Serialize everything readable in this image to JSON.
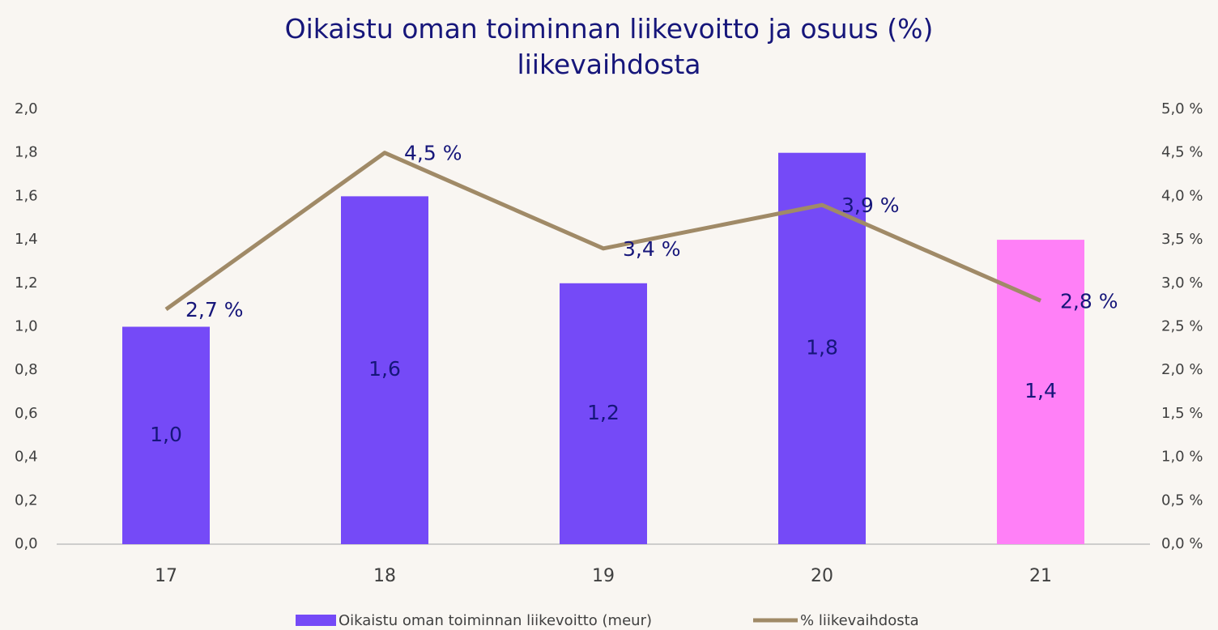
{
  "chart_data": {
    "type": "bar_line",
    "title": "Oikaistu oman toiminnan liikevoitto ja osuus (%) liikevaihdosta",
    "categories": [
      "17",
      "18",
      "19",
      "20",
      "21"
    ],
    "series": [
      {
        "name": "Oikaistu oman toiminnan liikevoitto (meur)",
        "type": "bar",
        "color": "#754af7",
        "colors": [
          "#754af7",
          "#754af7",
          "#754af7",
          "#754af7",
          "#ff80f7"
        ],
        "values": [
          1.0,
          1.6,
          1.2,
          1.8,
          1.4
        ],
        "value_labels": [
          "1,0",
          "1,6",
          "1,2",
          "1,8",
          "1,4"
        ]
      },
      {
        "name": "% liikevaihdosta",
        "type": "line",
        "axis": "y2",
        "color": "#a08a67",
        "values": [
          2.7,
          4.5,
          3.4,
          3.9,
          2.8
        ],
        "value_labels": [
          "2,7 %",
          "4,5 %",
          "3,4 %",
          "3,9 %",
          "2,8 %"
        ]
      }
    ],
    "ylim": [
      0,
      2.0
    ],
    "yticks": [
      {
        "value": 0,
        "label": "0,0"
      },
      {
        "value": 0.2,
        "label": "0,2"
      },
      {
        "value": 0.4,
        "label": "0,4"
      },
      {
        "value": 0.6,
        "label": "0,6"
      },
      {
        "value": 0.8,
        "label": "0,8"
      },
      {
        "value": 1.0,
        "label": "1,0"
      },
      {
        "value": 1.2,
        "label": "1,2"
      },
      {
        "value": 1.4,
        "label": "1,4"
      },
      {
        "value": 1.6,
        "label": "1,6"
      },
      {
        "value": 1.8,
        "label": "1,8"
      },
      {
        "value": 2.0,
        "label": "2,0"
      }
    ],
    "y2lim": [
      0,
      5.0
    ],
    "y2ticks": [
      {
        "value": 0,
        "label": "0,0 %"
      },
      {
        "value": 0.5,
        "label": "0,5 %"
      },
      {
        "value": 1.0,
        "label": "1,0 %"
      },
      {
        "value": 1.5,
        "label": "1,5 %"
      },
      {
        "value": 2.0,
        "label": "2,0 %"
      },
      {
        "value": 2.5,
        "label": "2,5 %"
      },
      {
        "value": 3.0,
        "label": "3,0 %"
      },
      {
        "value": 3.5,
        "label": "3,5 %"
      },
      {
        "value": 4.0,
        "label": "4,0 %"
      },
      {
        "value": 4.5,
        "label": "4,5 %"
      },
      {
        "value": 5.0,
        "label": "5,0 %"
      }
    ],
    "grid": false,
    "legend": "bottom"
  }
}
